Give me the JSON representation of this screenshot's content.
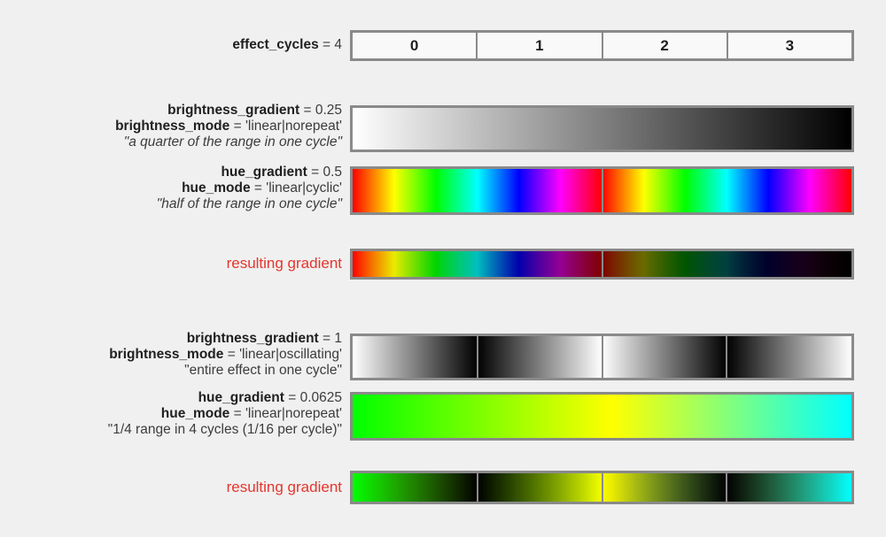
{
  "colors": {
    "page_bg": "#f0f0f0",
    "border": "#8a8a8a",
    "cell_bg": "#f9f9f9",
    "text": "#1f1f1f",
    "value": "#3c3c3c",
    "accent_red": "#e6352c"
  },
  "cycles_row": {
    "name": "effect_cycles",
    "value": " = 4",
    "cells": [
      "0",
      "1",
      "2",
      "3"
    ]
  },
  "section1": {
    "brightness": {
      "line1_name": "brightness_gradient",
      "line1_value": " = 0.25",
      "line2_name": "brightness_mode",
      "line2_value": " = 'linear|norepeat'",
      "quote": "\"a quarter of the range in one cycle\"",
      "gradient": {
        "stops": [
          [
            "#ffffff",
            0
          ],
          [
            "#000000",
            100
          ]
        ],
        "dividers": []
      }
    },
    "hue": {
      "line1_name": "hue_gradient",
      "line1_value": " = 0.5",
      "line2_name": "hue_mode",
      "line2_value": " = 'linear|cyclic'",
      "quote": "\"half of the range in one cycle\"",
      "gradient": {
        "stops": [
          [
            "#ff0000",
            0
          ],
          [
            "#ffff00",
            8.33
          ],
          [
            "#00ff00",
            16.67
          ],
          [
            "#00ffff",
            25
          ],
          [
            "#0000ff",
            33.33
          ],
          [
            "#ff00ff",
            41.67
          ],
          [
            "#ff0000",
            50
          ],
          [
            "#ffff00",
            58.33
          ],
          [
            "#00ff00",
            66.67
          ],
          [
            "#00ffff",
            75
          ],
          [
            "#0000ff",
            83.33
          ],
          [
            "#ff00ff",
            91.67
          ],
          [
            "#ff0000",
            100
          ]
        ],
        "dividers": [
          50
        ]
      }
    },
    "resulting": {
      "label": "resulting gradient",
      "gradient": {
        "stops": [
          [
            "#ff0000",
            0
          ],
          [
            "#ffff00",
            8.33
          ],
          [
            "#00ff00",
            16.67
          ],
          [
            "#00ffff",
            25
          ],
          [
            "#0000ff",
            33.33
          ],
          [
            "#ff00ff",
            41.67
          ],
          [
            "#ff0000",
            50
          ],
          [
            "#ffff00",
            58.33
          ],
          [
            "#00ff00",
            66.67
          ],
          [
            "#00ffff",
            75
          ],
          [
            "#0000ff",
            83.33
          ],
          [
            "#ff00ff",
            91.67
          ],
          [
            "#ff0000",
            100
          ]
        ],
        "overlay": [
          [
            0,
            0
          ],
          [
            1,
            100
          ]
        ],
        "dividers": [
          50
        ]
      }
    }
  },
  "section2": {
    "brightness": {
      "line1_name": "brightness_gradient",
      "line1_value": " = 1",
      "line2_name": "brightness_mode",
      "line2_value": " = 'linear|oscillating'",
      "quote": "\"entire effect in one cycle\"",
      "gradient": {
        "stops": [
          [
            "#ffffff",
            0
          ],
          [
            "#000000",
            25
          ],
          [
            "#ffffff",
            50
          ],
          [
            "#000000",
            75
          ],
          [
            "#ffffff",
            100
          ]
        ],
        "dividers": [
          25,
          50,
          75
        ]
      }
    },
    "hue": {
      "line1_name": "hue_gradient",
      "line1_value": " = 0.0625",
      "line2_name": "hue_mode",
      "line2_value": " = 'linear|norepeat'",
      "quote": "\"1/4 range in 4 cycles (1/16 per cycle)\"",
      "gradient": {
        "stops": [
          [
            "#00ff00",
            0
          ],
          [
            "#ffff00",
            52
          ],
          [
            "#00ffff",
            100
          ]
        ],
        "dividers": []
      }
    },
    "resulting": {
      "label": "resulting gradient",
      "gradient": {
        "stops": [
          [
            "#00ff00",
            0
          ],
          [
            "#ffff00",
            52
          ],
          [
            "#00ffff",
            100
          ]
        ],
        "overlay": [
          [
            0,
            0
          ],
          [
            1,
            25
          ],
          [
            0,
            50
          ],
          [
            1,
            75
          ],
          [
            0,
            100
          ]
        ],
        "dividers": [
          25,
          50,
          75
        ]
      }
    }
  }
}
